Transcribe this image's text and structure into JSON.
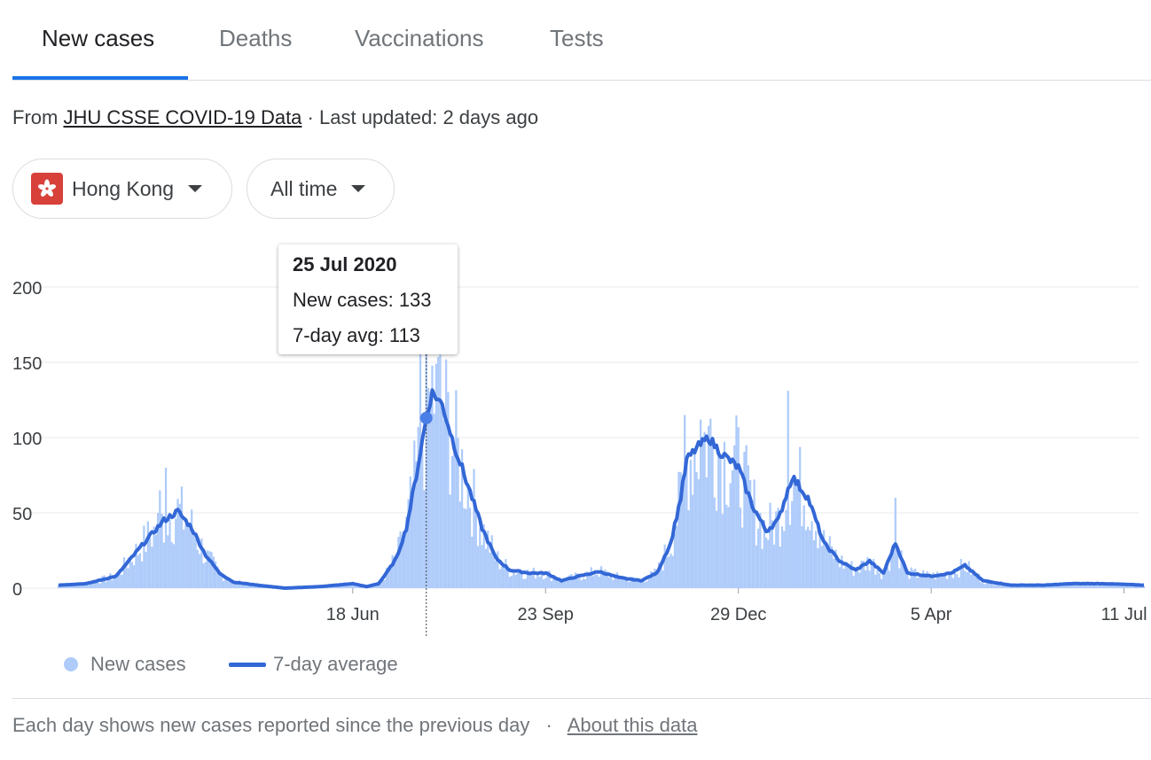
{
  "tabs": [
    {
      "label": "New cases",
      "active": true
    },
    {
      "label": "Deaths",
      "active": false
    },
    {
      "label": "Vaccinations",
      "active": false
    },
    {
      "label": "Tests",
      "active": false
    }
  ],
  "source": {
    "prefix": "From",
    "link": "JHU CSSE COVID-19 Data",
    "separator": "·",
    "updated": "Last updated: 2 days ago"
  },
  "filters": {
    "region": {
      "label": "Hong Kong",
      "icon": "hong-kong-flag-icon"
    },
    "period": {
      "label": "All time",
      "icon": "chevron-down-icon"
    }
  },
  "tooltip": {
    "date": "25 Jul 2020",
    "new_cases": "New cases: 133",
    "avg": "7-day avg: 113"
  },
  "legend": {
    "bars": "New cases",
    "line": "7-day average"
  },
  "footer": {
    "text": "Each day shows new cases reported since the previous day",
    "separator": "·",
    "link": "About this data"
  },
  "colors": {
    "bar": "#aecbfa",
    "line": "#3367d6",
    "accent": "#1a73e8",
    "grid": "#e8eaed"
  },
  "chart_data": {
    "type": "bar",
    "start_date": "2020-01-22",
    "end_date": "2021-07-21",
    "ylim": [
      0,
      200
    ],
    "yticks": [
      0,
      50,
      100,
      150,
      200
    ],
    "xticks": [
      {
        "date": "2020-06-18",
        "label": "18 Jun"
      },
      {
        "date": "2020-09-23",
        "label": "23 Sep"
      },
      {
        "date": "2020-12-29",
        "label": "29 Dec"
      },
      {
        "date": "2021-04-05",
        "label": "5 Apr"
      },
      {
        "date": "2021-07-11",
        "label": "11 Jul"
      }
    ],
    "highlight": {
      "date": "2020-07-25",
      "new_cases": 133,
      "avg": 113
    },
    "series": [
      {
        "name": "7-day average",
        "points": [
          [
            "2020-01-22",
            2
          ],
          [
            "2020-02-05",
            3
          ],
          [
            "2020-02-20",
            8
          ],
          [
            "2020-03-05",
            30
          ],
          [
            "2020-03-15",
            45
          ],
          [
            "2020-03-22",
            51
          ],
          [
            "2020-03-29",
            40
          ],
          [
            "2020-04-05",
            22
          ],
          [
            "2020-04-12",
            10
          ],
          [
            "2020-04-19",
            4
          ],
          [
            "2020-05-01",
            2
          ],
          [
            "2020-05-15",
            0
          ],
          [
            "2020-06-01",
            1
          ],
          [
            "2020-06-10",
            2
          ],
          [
            "2020-06-18",
            3
          ],
          [
            "2020-06-25",
            1
          ],
          [
            "2020-07-01",
            3
          ],
          [
            "2020-07-05",
            10
          ],
          [
            "2020-07-10",
            20
          ],
          [
            "2020-07-15",
            40
          ],
          [
            "2020-07-20",
            75
          ],
          [
            "2020-07-25",
            113
          ],
          [
            "2020-07-28",
            130
          ],
          [
            "2020-08-02",
            122
          ],
          [
            "2020-08-08",
            95
          ],
          [
            "2020-08-15",
            68
          ],
          [
            "2020-08-22",
            40
          ],
          [
            "2020-08-29",
            20
          ],
          [
            "2020-09-05",
            12
          ],
          [
            "2020-09-15",
            10
          ],
          [
            "2020-09-23",
            10
          ],
          [
            "2020-10-01",
            5
          ],
          [
            "2020-10-10",
            8
          ],
          [
            "2020-10-20",
            11
          ],
          [
            "2020-10-30",
            7
          ],
          [
            "2020-11-10",
            5
          ],
          [
            "2020-11-18",
            10
          ],
          [
            "2020-11-25",
            30
          ],
          [
            "2020-11-30",
            60
          ],
          [
            "2020-12-03",
            85
          ],
          [
            "2020-12-08",
            93
          ],
          [
            "2020-12-14",
            100
          ],
          [
            "2020-12-20",
            90
          ],
          [
            "2020-12-29",
            80
          ],
          [
            "2021-01-05",
            55
          ],
          [
            "2021-01-12",
            38
          ],
          [
            "2021-01-18",
            45
          ],
          [
            "2021-01-25",
            74
          ],
          [
            "2021-02-02",
            60
          ],
          [
            "2021-02-10",
            30
          ],
          [
            "2021-02-18",
            18
          ],
          [
            "2021-02-26",
            12
          ],
          [
            "2021-03-05",
            18
          ],
          [
            "2021-03-12",
            10
          ],
          [
            "2021-03-18",
            30
          ],
          [
            "2021-03-24",
            10
          ],
          [
            "2021-04-05",
            8
          ],
          [
            "2021-04-15",
            10
          ],
          [
            "2021-04-22",
            15
          ],
          [
            "2021-05-01",
            5
          ],
          [
            "2021-05-15",
            2
          ],
          [
            "2021-06-01",
            2
          ],
          [
            "2021-06-15",
            3
          ],
          [
            "2021-07-01",
            3
          ],
          [
            "2021-07-21",
            2
          ]
        ]
      },
      {
        "name": "New cases",
        "note": "daily bars scatter around the 7-day average; notable spikes",
        "spikes": [
          [
            "2020-03-16",
            80
          ],
          [
            "2020-03-13",
            65
          ],
          [
            "2020-07-22",
            160
          ],
          [
            "2020-07-26",
            133
          ],
          [
            "2020-07-30",
            149
          ],
          [
            "2020-12-02",
            115
          ],
          [
            "2020-12-10",
            112
          ],
          [
            "2021-01-23",
            131
          ],
          [
            "2021-03-18",
            60
          ]
        ]
      }
    ]
  }
}
